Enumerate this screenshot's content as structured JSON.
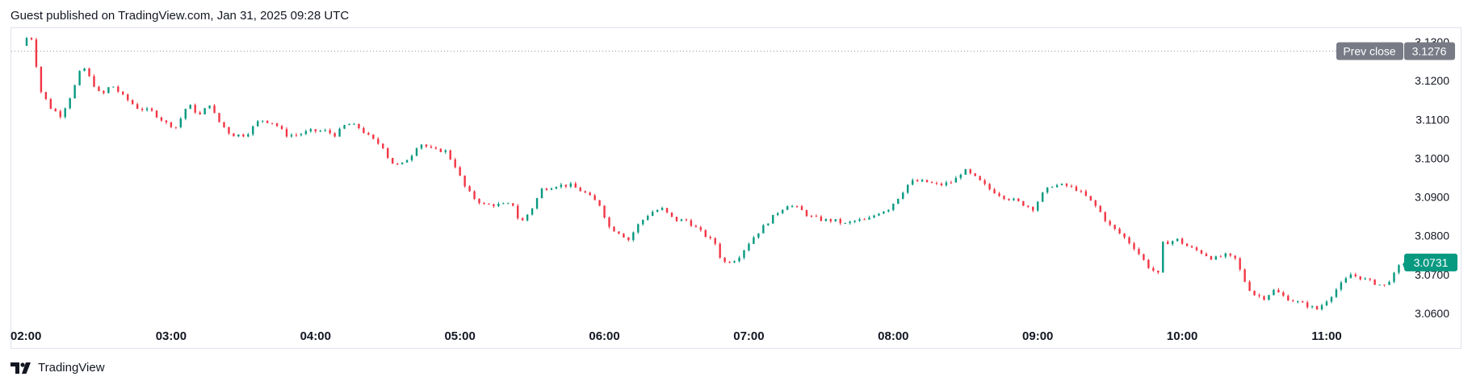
{
  "header": {
    "attribution": "Guest published on TradingView.com, Jan 31, 2025 09:28 UTC"
  },
  "footer": {
    "logo_text": "TradingView"
  },
  "colors": {
    "up": "#089981",
    "down": "#f23645",
    "prev_close_bg": "#787b86",
    "last_price_bg": "#089981"
  },
  "chart_data": {
    "type": "candlestick",
    "title": "",
    "y_ticks": [
      "3.1300",
      "3.1200",
      "3.1100",
      "3.1000",
      "3.0900",
      "3.0800",
      "3.0700",
      "3.0600"
    ],
    "ylim": [
      3.0585,
      3.1325
    ],
    "x_ticks": [
      "02:00",
      "03:00",
      "04:00",
      "05:00",
      "06:00",
      "07:00",
      "08:00",
      "09:00",
      "10:00",
      "11:00"
    ],
    "x_tick_hours": [
      2,
      3,
      4,
      5,
      6,
      7,
      8,
      9,
      10,
      11
    ],
    "xlim_hours": [
      2.0,
      11.65
    ],
    "prev_close": {
      "label": "Prev close",
      "value": "3.1276",
      "price": 3.1276
    },
    "last_price": {
      "value": "3.0731",
      "price": 3.0731
    },
    "grid": false,
    "series": [
      {
        "candle_minutes": 2,
        "start_hour": 2.0,
        "anchors": [
          [
            2.0,
            3.129
          ],
          [
            2.05,
            3.132
          ],
          [
            2.08,
            3.13
          ],
          [
            2.12,
            3.118
          ],
          [
            2.2,
            3.113
          ],
          [
            2.27,
            3.111
          ],
          [
            2.35,
            3.117
          ],
          [
            2.42,
            3.124
          ],
          [
            2.48,
            3.12
          ],
          [
            2.55,
            3.116
          ],
          [
            2.62,
            3.119
          ],
          [
            2.7,
            3.116
          ],
          [
            2.8,
            3.113
          ],
          [
            2.9,
            3.112
          ],
          [
            3.0,
            3.109
          ],
          [
            3.07,
            3.108
          ],
          [
            3.15,
            3.114
          ],
          [
            3.23,
            3.111
          ],
          [
            3.3,
            3.114
          ],
          [
            3.35,
            3.11
          ],
          [
            3.45,
            3.106
          ],
          [
            3.55,
            3.106
          ],
          [
            3.65,
            3.11
          ],
          [
            3.75,
            3.109
          ],
          [
            3.83,
            3.106
          ],
          [
            3.9,
            3.106
          ],
          [
            4.0,
            3.107
          ],
          [
            4.1,
            3.107
          ],
          [
            4.17,
            3.106
          ],
          [
            4.25,
            3.109
          ],
          [
            4.33,
            3.108
          ],
          [
            4.42,
            3.105
          ],
          [
            4.5,
            3.103
          ],
          [
            4.55,
            3.099
          ],
          [
            4.62,
            3.098
          ],
          [
            4.7,
            3.101
          ],
          [
            4.75,
            3.104
          ],
          [
            4.85,
            3.102
          ],
          [
            4.93,
            3.102
          ],
          [
            5.0,
            3.098
          ],
          [
            5.06,
            3.093
          ],
          [
            5.12,
            3.09
          ],
          [
            5.2,
            3.088
          ],
          [
            5.3,
            3.088
          ],
          [
            5.4,
            3.088
          ],
          [
            5.45,
            3.083
          ],
          [
            5.53,
            3.087
          ],
          [
            5.6,
            3.092
          ],
          [
            5.7,
            3.093
          ],
          [
            5.8,
            3.093
          ],
          [
            5.9,
            3.091
          ],
          [
            6.0,
            3.088
          ],
          [
            6.07,
            3.082
          ],
          [
            6.13,
            3.081
          ],
          [
            6.2,
            3.079
          ],
          [
            6.27,
            3.083
          ],
          [
            6.35,
            3.086
          ],
          [
            6.43,
            3.087
          ],
          [
            6.52,
            3.084
          ],
          [
            6.6,
            3.084
          ],
          [
            6.7,
            3.081
          ],
          [
            6.8,
            3.078
          ],
          [
            6.85,
            3.073
          ],
          [
            6.95,
            3.074
          ],
          [
            7.05,
            3.079
          ],
          [
            7.15,
            3.083
          ],
          [
            7.23,
            3.086
          ],
          [
            7.3,
            3.088
          ],
          [
            7.38,
            3.087
          ],
          [
            7.45,
            3.085
          ],
          [
            7.55,
            3.084
          ],
          [
            7.62,
            3.084
          ],
          [
            7.7,
            3.083
          ],
          [
            7.78,
            3.084
          ],
          [
            7.85,
            3.084
          ],
          [
            7.93,
            3.086
          ],
          [
            8.0,
            3.087
          ],
          [
            8.07,
            3.09
          ],
          [
            8.15,
            3.094
          ],
          [
            8.25,
            3.094
          ],
          [
            8.35,
            3.093
          ],
          [
            8.45,
            3.094
          ],
          [
            8.52,
            3.097
          ],
          [
            8.6,
            3.095
          ],
          [
            8.7,
            3.092
          ],
          [
            8.8,
            3.09
          ],
          [
            8.88,
            3.089
          ],
          [
            9.0,
            3.087
          ],
          [
            9.07,
            3.091
          ],
          [
            9.13,
            3.093
          ],
          [
            9.22,
            3.093
          ],
          [
            9.3,
            3.092
          ],
          [
            9.37,
            3.09
          ],
          [
            9.45,
            3.087
          ],
          [
            9.52,
            3.083
          ],
          [
            9.62,
            3.08
          ],
          [
            9.7,
            3.077
          ],
          [
            9.8,
            3.072
          ],
          [
            9.87,
            3.07
          ],
          [
            9.9,
            3.078
          ],
          [
            10.0,
            3.079
          ],
          [
            10.08,
            3.077
          ],
          [
            10.15,
            3.076
          ],
          [
            10.25,
            3.074
          ],
          [
            10.33,
            3.075
          ],
          [
            10.4,
            3.074
          ],
          [
            10.47,
            3.068
          ],
          [
            10.52,
            3.065
          ],
          [
            10.6,
            3.064
          ],
          [
            10.67,
            3.066
          ],
          [
            10.75,
            3.064
          ],
          [
            10.82,
            3.063
          ],
          [
            10.9,
            3.062
          ],
          [
            10.97,
            3.061
          ],
          [
            11.05,
            3.064
          ],
          [
            11.12,
            3.067
          ],
          [
            11.2,
            3.07
          ],
          [
            11.28,
            3.069
          ],
          [
            11.35,
            3.068
          ],
          [
            11.43,
            3.067
          ],
          [
            11.5,
            3.07
          ],
          [
            11.55,
            3.073
          ],
          [
            11.62,
            3.0731
          ]
        ]
      }
    ]
  }
}
